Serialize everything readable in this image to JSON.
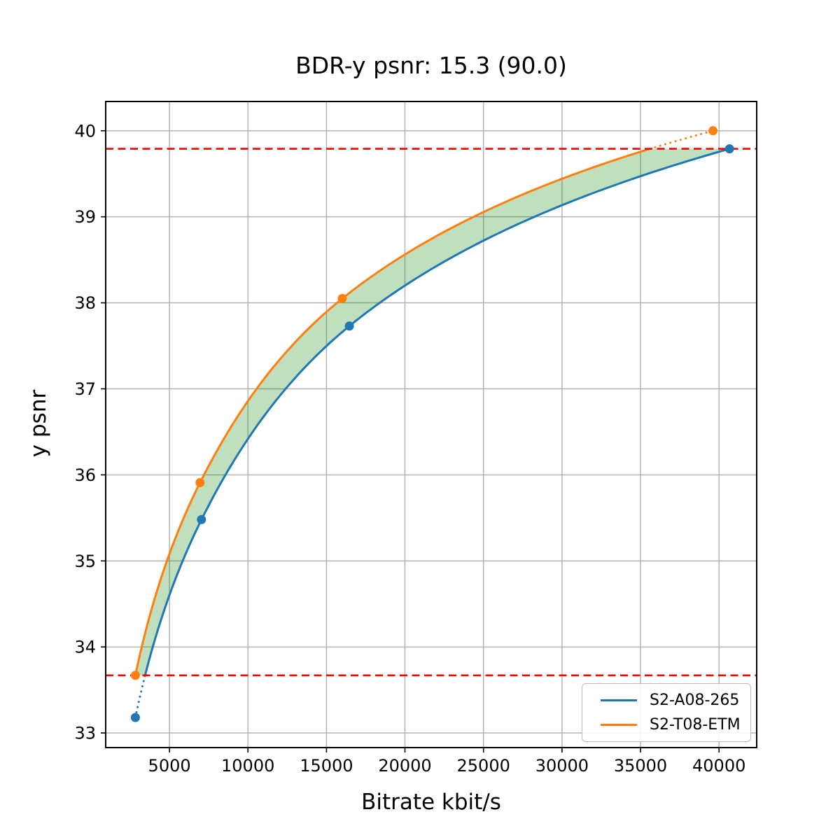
{
  "chart_data": {
    "type": "line",
    "title": "BDR-y psnr: 15.3 (90.0)",
    "xlabel": "Bitrate kbit/s",
    "ylabel": "y psnr",
    "xlim": [
      940,
      42400
    ],
    "ylim": [
      32.83,
      40.34
    ],
    "x_ticks": [
      5000,
      10000,
      15000,
      20000,
      25000,
      30000,
      35000,
      40000
    ],
    "y_ticks": [
      33,
      34,
      35,
      36,
      37,
      38,
      39,
      40
    ],
    "grid": true,
    "grid_color": "#b0b0b0",
    "legend_position": "lower right",
    "series": [
      {
        "name": "S2-A08-265",
        "color": "#1f77b4",
        "marker": "circle",
        "x": [
          2830,
          7040,
          16460,
          40670
        ],
        "y": [
          33.18,
          35.48,
          37.73,
          39.79
        ]
      },
      {
        "name": "S2-T08-ETM",
        "color": "#ff7f0e",
        "marker": "circle",
        "x": [
          2830,
          6950,
          16010,
          39620
        ],
        "y": [
          33.67,
          35.91,
          38.05,
          40.0
        ]
      }
    ],
    "reference_lines": {
      "color": "#ff0000",
      "style": "dashed",
      "values": [
        33.67,
        39.79
      ]
    },
    "shaded_region": {
      "between": [
        "S2-T08-ETM",
        "S2-A08-265"
      ],
      "color": "#008000",
      "alpha": 0.25
    },
    "interpolation": "pchip-log-x",
    "style_note": "curves dotted outside reference-line range"
  }
}
